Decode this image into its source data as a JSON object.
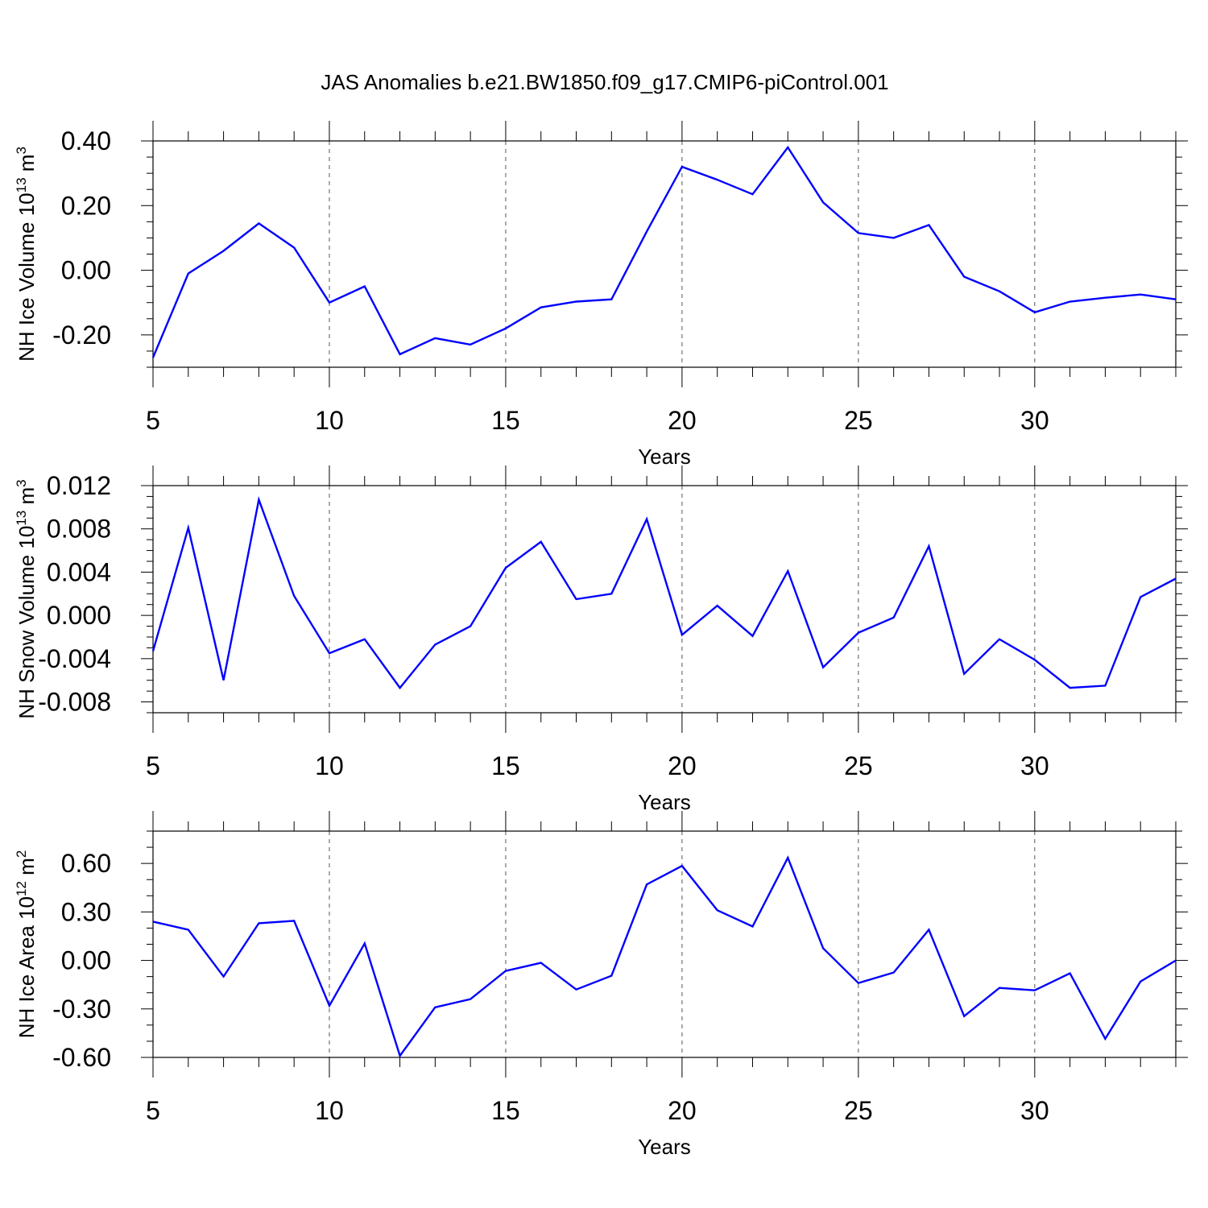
{
  "figure": {
    "title": "JAS Anomalies b.e21.BW1850.f09_g17.CMIP6-piControl.001",
    "line_color": "#0000ff"
  },
  "chart_data": [
    {
      "type": "line",
      "id": "ice-volume",
      "ylabel_main": "NH Ice Volume 10",
      "ylabel_exp": "13",
      "ylabel_unit": " m",
      "ylabel_unit_exp": "3",
      "xlabel": "Years",
      "xlim": [
        5,
        34
      ],
      "ylim": [
        -0.3,
        0.4
      ],
      "xticks": [
        5,
        10,
        15,
        20,
        25,
        30
      ],
      "xtick_labels": [
        "5",
        "10",
        "15",
        "20",
        "25",
        "30"
      ],
      "xgrid": [
        10,
        15,
        20,
        25,
        30
      ],
      "yticks": [
        0.4,
        0.2,
        0.0,
        -0.2
      ],
      "ytick_labels": [
        "0.40",
        "0.20",
        "0.00",
        "-0.20"
      ],
      "yminor_step": 0.05,
      "x": [
        5,
        6,
        7,
        8,
        9,
        10,
        11,
        12,
        13,
        14,
        15,
        16,
        17,
        18,
        19,
        20,
        21,
        22,
        23,
        24,
        25,
        26,
        27,
        28,
        29,
        30,
        31,
        32,
        33,
        34
      ],
      "y": [
        -0.27,
        -0.01,
        0.06,
        0.145,
        0.07,
        -0.1,
        -0.05,
        -0.26,
        -0.21,
        -0.23,
        -0.18,
        -0.115,
        -0.097,
        -0.09,
        0.12,
        0.32,
        0.28,
        0.235,
        0.38,
        0.21,
        0.115,
        0.1,
        0.14,
        -0.02,
        -0.065,
        -0.13,
        -0.097,
        -0.085,
        -0.075,
        -0.09
      ]
    },
    {
      "type": "line",
      "id": "snow-volume",
      "ylabel_main": "NH Snow Volume 10",
      "ylabel_exp": "13",
      "ylabel_unit": " m",
      "ylabel_unit_exp": "3",
      "xlabel": "Years",
      "xlim": [
        5,
        34
      ],
      "ylim": [
        -0.009,
        0.012
      ],
      "xticks": [
        5,
        10,
        15,
        20,
        25,
        30
      ],
      "xtick_labels": [
        "5",
        "10",
        "15",
        "20",
        "25",
        "30"
      ],
      "xgrid": [
        10,
        15,
        20,
        25,
        30
      ],
      "yticks": [
        0.012,
        0.008,
        0.004,
        0.0,
        -0.004,
        -0.008
      ],
      "ytick_labels": [
        "0.012",
        "0.008",
        "0.004",
        "0.000",
        "-0.004",
        "-0.008"
      ],
      "yminor_step": 0.001,
      "x": [
        5,
        6,
        7,
        8,
        9,
        10,
        11,
        12,
        13,
        14,
        15,
        16,
        17,
        18,
        19,
        20,
        21,
        22,
        23,
        24,
        25,
        26,
        27,
        28,
        29,
        30,
        31,
        32,
        33,
        34
      ],
      "y": [
        -0.0033,
        0.0081,
        -0.006,
        0.0107,
        0.0018,
        -0.0035,
        -0.0022,
        -0.0067,
        -0.0027,
        -0.001,
        0.0044,
        0.0068,
        0.0015,
        0.002,
        0.0089,
        -0.0018,
        0.0009,
        -0.0019,
        0.0041,
        -0.0048,
        -0.0016,
        -0.0002,
        0.0064,
        -0.0054,
        -0.0022,
        -0.0041,
        -0.0067,
        -0.0065,
        0.0017,
        0.0034
      ]
    },
    {
      "type": "line",
      "id": "ice-area",
      "ylabel_main": "NH Ice Area 10",
      "ylabel_exp": "12",
      "ylabel_unit": " m",
      "ylabel_unit_exp": "2",
      "xlabel": "Years",
      "xlim": [
        5,
        34
      ],
      "ylim": [
        -0.6,
        0.8
      ],
      "xticks": [
        5,
        10,
        15,
        20,
        25,
        30
      ],
      "xtick_labels": [
        "5",
        "10",
        "15",
        "20",
        "25",
        "30"
      ],
      "xgrid": [
        10,
        15,
        20,
        25,
        30
      ],
      "yticks": [
        0.6,
        0.3,
        0.0,
        -0.3,
        -0.6
      ],
      "ytick_labels": [
        "0.60",
        "0.30",
        "0.00",
        "-0.30",
        "-0.60"
      ],
      "yminor_step": 0.1,
      "x": [
        5,
        6,
        7,
        8,
        9,
        10,
        11,
        12,
        13,
        14,
        15,
        16,
        17,
        18,
        19,
        20,
        21,
        22,
        23,
        24,
        25,
        26,
        27,
        28,
        29,
        30,
        31,
        32,
        33,
        34
      ],
      "y": [
        0.24,
        0.19,
        -0.1,
        0.23,
        0.245,
        -0.28,
        0.105,
        -0.59,
        -0.29,
        -0.24,
        -0.065,
        -0.015,
        -0.18,
        -0.095,
        0.47,
        0.585,
        0.31,
        0.21,
        0.635,
        0.075,
        -0.14,
        -0.075,
        0.19,
        -0.345,
        -0.17,
        -0.185,
        -0.08,
        -0.485,
        -0.13,
        0.0
      ]
    }
  ]
}
